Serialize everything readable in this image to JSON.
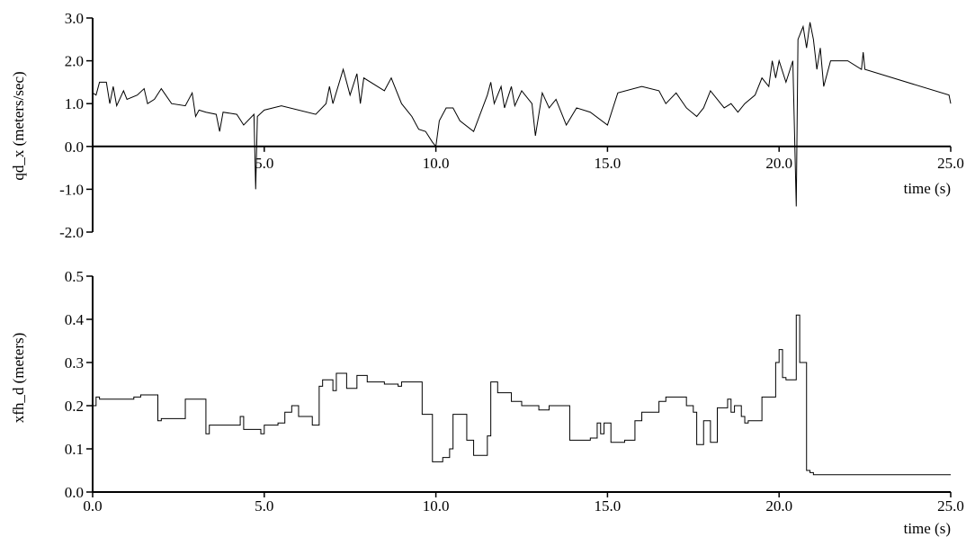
{
  "chart_data": [
    {
      "type": "line",
      "ylabel": "qd_x (meters/sec)",
      "xlabel": "time (s)",
      "color": "#000000",
      "xlim": [
        0,
        25
      ],
      "ylim": [
        -2,
        3
      ],
      "xticks": [
        {
          "value": 5,
          "label": "5.0"
        },
        {
          "value": 10,
          "label": "10.0"
        },
        {
          "value": 15,
          "label": "15.0"
        },
        {
          "value": 20,
          "label": "20.0"
        },
        {
          "value": 25,
          "label": "25.0"
        }
      ],
      "yticks": [
        {
          "value": -2,
          "label": "-2.0"
        },
        {
          "value": -1,
          "label": "-1.0"
        },
        {
          "value": 0,
          "label": "0.0"
        },
        {
          "value": 1,
          "label": "1.0"
        },
        {
          "value": 2,
          "label": "2.0"
        },
        {
          "value": 3,
          "label": "3.0"
        }
      ],
      "x": [
        0,
        0.1,
        0.2,
        0.4,
        0.5,
        0.6,
        0.7,
        0.9,
        1.0,
        1.3,
        1.5,
        1.6,
        1.8,
        2.0,
        2.3,
        2.7,
        2.9,
        3.0,
        3.1,
        3.3,
        3.6,
        3.7,
        3.8,
        4.2,
        4.4,
        4.7,
        4.75,
        4.8,
        5.0,
        5.5,
        6.5,
        6.8,
        6.9,
        7.0,
        7.3,
        7.5,
        7.7,
        7.8,
        7.9,
        8.5,
        8.7,
        9.0,
        9.3,
        9.5,
        9.7,
        9.9,
        10.0,
        10.1,
        10.3,
        10.5,
        10.7,
        11.1,
        11.5,
        11.6,
        11.7,
        11.9,
        12.0,
        12.2,
        12.3,
        12.5,
        12.8,
        12.9,
        13.1,
        13.3,
        13.5,
        13.8,
        14.1,
        14.5,
        15.0,
        15.3,
        16.0,
        16.5,
        16.7,
        17.0,
        17.3,
        17.6,
        17.8,
        18.0,
        18.4,
        18.6,
        18.8,
        19.0,
        19.3,
        19.5,
        19.7,
        19.8,
        19.9,
        20.0,
        20.2,
        20.4,
        20.5,
        20.55,
        20.7,
        20.8,
        20.9,
        21.0,
        21.1,
        21.2,
        21.3,
        21.5,
        22.0,
        22.4,
        22.45,
        22.5,
        24.95,
        25.0
      ],
      "values": [
        1.25,
        1.2,
        1.5,
        1.5,
        1.0,
        1.4,
        0.95,
        1.3,
        1.1,
        1.2,
        1.35,
        1.0,
        1.1,
        1.35,
        1.0,
        0.95,
        1.25,
        0.7,
        0.85,
        0.8,
        0.75,
        0.35,
        0.8,
        0.75,
        0.5,
        0.75,
        -1.0,
        0.7,
        0.85,
        0.95,
        0.75,
        1.0,
        1.4,
        1.0,
        1.8,
        1.2,
        1.7,
        1.0,
        1.6,
        1.3,
        1.6,
        1.0,
        0.7,
        0.4,
        0.35,
        0.1,
        0.0,
        0.6,
        0.9,
        0.9,
        0.6,
        0.35,
        1.2,
        1.5,
        1.0,
        1.4,
        0.9,
        1.4,
        0.95,
        1.3,
        1.0,
        0.25,
        1.25,
        0.9,
        1.1,
        0.5,
        0.9,
        0.8,
        0.5,
        1.25,
        1.4,
        1.3,
        1.0,
        1.25,
        0.9,
        0.7,
        0.9,
        1.3,
        0.9,
        1.0,
        0.8,
        1.0,
        1.2,
        1.6,
        1.4,
        2.0,
        1.6,
        2.0,
        1.5,
        2.0,
        -1.4,
        2.5,
        2.8,
        2.3,
        2.9,
        2.5,
        1.8,
        2.3,
        1.4,
        2.0,
        2.0,
        1.8,
        2.2,
        1.8,
        1.2,
        1.0
      ]
    },
    {
      "type": "line",
      "drawstyle": "steps-post",
      "ylabel": "xfh_d (meters)",
      "xlabel": "time (s)",
      "color": "#000000",
      "xlim": [
        0,
        25
      ],
      "ylim": [
        0,
        0.5
      ],
      "xticks": [
        {
          "value": 0,
          "label": "0.0"
        },
        {
          "value": 5,
          "label": "5.0"
        },
        {
          "value": 10,
          "label": "10.0"
        },
        {
          "value": 15,
          "label": "15.0"
        },
        {
          "value": 20,
          "label": "20.0"
        },
        {
          "value": 25,
          "label": "25.0"
        }
      ],
      "yticks": [
        {
          "value": 0,
          "label": "0.0"
        },
        0.1,
        0.2,
        0.3,
        0.4,
        0.5
      ],
      "x": [
        0,
        0.1,
        0.2,
        1.2,
        1.4,
        1.9,
        2.0,
        2.7,
        3.3,
        3.4,
        4.1,
        4.3,
        4.4,
        4.9,
        5.0,
        5.4,
        5.6,
        5.8,
        6.0,
        6.4,
        6.6,
        6.7,
        7.0,
        7.1,
        7.4,
        7.7,
        8.0,
        8.5,
        8.9,
        9.0,
        9.6,
        9.9,
        10.2,
        10.4,
        10.5,
        10.9,
        11.1,
        11.5,
        11.6,
        11.8,
        12.2,
        12.5,
        13.0,
        13.3,
        13.9,
        14.5,
        14.7,
        14.8,
        14.9,
        15.1,
        15.5,
        15.8,
        16.0,
        16.5,
        16.7,
        17.3,
        17.5,
        17.6,
        17.8,
        18.0,
        18.2,
        18.5,
        18.6,
        18.7,
        18.9,
        19.0,
        19.1,
        19.5,
        19.9,
        20.0,
        20.1,
        20.2,
        20.5,
        20.6,
        20.7,
        20.8,
        20.9,
        21.0,
        25.0
      ],
      "values": [
        0.2,
        0.22,
        0.215,
        0.22,
        0.225,
        0.165,
        0.17,
        0.215,
        0.135,
        0.155,
        0.155,
        0.175,
        0.145,
        0.135,
        0.155,
        0.16,
        0.185,
        0.2,
        0.175,
        0.155,
        0.245,
        0.26,
        0.235,
        0.275,
        0.24,
        0.27,
        0.255,
        0.25,
        0.245,
        0.255,
        0.18,
        0.07,
        0.08,
        0.1,
        0.18,
        0.12,
        0.085,
        0.13,
        0.255,
        0.23,
        0.21,
        0.2,
        0.19,
        0.2,
        0.12,
        0.125,
        0.16,
        0.135,
        0.16,
        0.115,
        0.12,
        0.165,
        0.185,
        0.21,
        0.22,
        0.2,
        0.185,
        0.11,
        0.165,
        0.115,
        0.195,
        0.215,
        0.185,
        0.2,
        0.175,
        0.16,
        0.165,
        0.22,
        0.3,
        0.33,
        0.265,
        0.26,
        0.41,
        0.3,
        0.3,
        0.05,
        0.045,
        0.04,
        0.04
      ]
    }
  ]
}
